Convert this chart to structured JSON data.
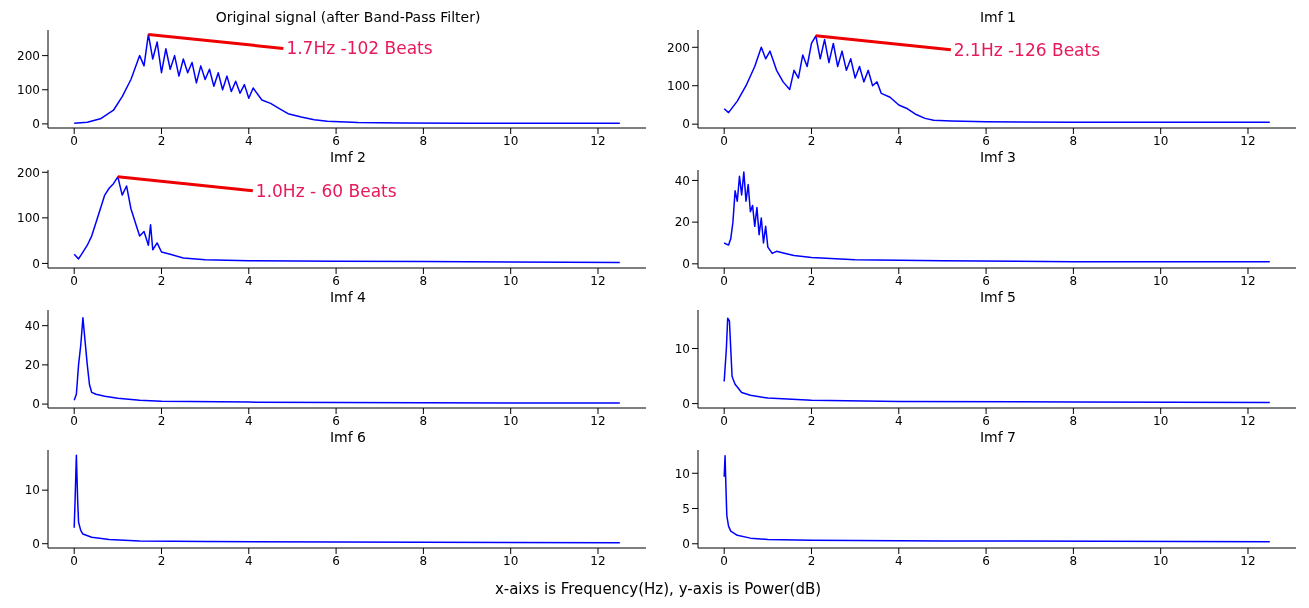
{
  "chart_data": [
    {
      "type": "line",
      "title": "Original signal (after Band-Pass Filter)",
      "color": "#0000ff",
      "xlim": [
        -0.6,
        13.1
      ],
      "ylim": [
        -12,
        275
      ],
      "xticks": [
        0,
        2,
        4,
        6,
        8,
        10,
        12
      ],
      "yticks": [
        0,
        100,
        200
      ],
      "annotations": [
        {
          "text": "1.7Hz -102 Beats",
          "x": 1.7,
          "y": 262
        }
      ],
      "x": [
        0,
        0.3,
        0.6,
        0.9,
        1.1,
        1.3,
        1.5,
        1.6,
        1.7,
        1.8,
        1.9,
        2.0,
        2.1,
        2.2,
        2.3,
        2.4,
        2.5,
        2.6,
        2.7,
        2.8,
        2.9,
        3.0,
        3.1,
        3.2,
        3.3,
        3.4,
        3.5,
        3.6,
        3.7,
        3.8,
        3.9,
        4.0,
        4.1,
        4.3,
        4.5,
        4.7,
        4.9,
        5.2,
        5.5,
        5.8,
        6.5,
        7.5,
        9,
        11,
        12.5
      ],
      "values": [
        2,
        5,
        15,
        40,
        80,
        130,
        200,
        170,
        262,
        190,
        240,
        150,
        220,
        160,
        200,
        140,
        190,
        150,
        180,
        120,
        170,
        130,
        160,
        110,
        150,
        100,
        140,
        95,
        125,
        90,
        115,
        75,
        105,
        70,
        60,
        45,
        30,
        20,
        12,
        8,
        4,
        3,
        2,
        2,
        2
      ]
    },
    {
      "type": "line",
      "title": "Imf 1",
      "color": "#0000ff",
      "xlim": [
        -0.6,
        13.1
      ],
      "ylim": [
        -10,
        245
      ],
      "xticks": [
        0,
        2,
        4,
        6,
        8,
        10,
        12
      ],
      "yticks": [
        0,
        100,
        200
      ],
      "annotations": [
        {
          "text": "2.1Hz -126 Beats",
          "x": 2.1,
          "y": 230
        }
      ],
      "x": [
        0,
        0.1,
        0.3,
        0.5,
        0.7,
        0.85,
        0.95,
        1.05,
        1.2,
        1.35,
        1.5,
        1.6,
        1.7,
        1.8,
        1.9,
        2.0,
        2.1,
        2.2,
        2.3,
        2.4,
        2.5,
        2.6,
        2.7,
        2.8,
        2.9,
        3.0,
        3.1,
        3.2,
        3.3,
        3.4,
        3.5,
        3.6,
        3.8,
        4.0,
        4.2,
        4.4,
        4.6,
        4.8,
        5.2,
        6,
        8,
        10,
        12.5
      ],
      "values": [
        40,
        30,
        60,
        100,
        150,
        200,
        170,
        190,
        140,
        110,
        90,
        140,
        120,
        180,
        150,
        210,
        230,
        170,
        220,
        160,
        210,
        150,
        190,
        140,
        170,
        120,
        150,
        110,
        140,
        100,
        110,
        80,
        70,
        50,
        40,
        25,
        15,
        10,
        8,
        6,
        5,
        5,
        5
      ]
    },
    {
      "type": "line",
      "title": "Imf 2",
      "color": "#0000ff",
      "xlim": [
        -0.6,
        13.1
      ],
      "ylim": [
        -10,
        205
      ],
      "xticks": [
        0,
        2,
        4,
        6,
        8,
        10,
        12
      ],
      "yticks": [
        0,
        100,
        200
      ],
      "annotations": [
        {
          "text": "1.0Hz - 60 Beats",
          "x": 1.0,
          "y": 190
        }
      ],
      "x": [
        0,
        0.1,
        0.2,
        0.3,
        0.4,
        0.5,
        0.6,
        0.7,
        0.8,
        0.9,
        1.0,
        1.1,
        1.2,
        1.3,
        1.4,
        1.5,
        1.6,
        1.7,
        1.75,
        1.8,
        1.9,
        2.0,
        2.2,
        2.5,
        3,
        4,
        6,
        8,
        10,
        12.5
      ],
      "values": [
        20,
        10,
        25,
        40,
        60,
        90,
        120,
        150,
        165,
        175,
        190,
        150,
        170,
        120,
        90,
        60,
        70,
        40,
        85,
        30,
        45,
        25,
        20,
        12,
        8,
        6,
        5,
        4,
        3,
        2
      ]
    },
    {
      "type": "line",
      "title": "Imf 3",
      "color": "#0000ff",
      "xlim": [
        -0.6,
        13.1
      ],
      "ylim": [
        -2,
        45
      ],
      "xticks": [
        0,
        2,
        4,
        6,
        8,
        10,
        12
      ],
      "yticks": [
        0,
        20,
        40
      ],
      "x": [
        0,
        0.1,
        0.15,
        0.2,
        0.25,
        0.3,
        0.35,
        0.4,
        0.45,
        0.5,
        0.55,
        0.6,
        0.65,
        0.7,
        0.75,
        0.8,
        0.85,
        0.9,
        0.95,
        1.0,
        1.1,
        1.2,
        1.4,
        1.6,
        2,
        3,
        5,
        8,
        12.5
      ],
      "values": [
        10,
        9,
        12,
        20,
        35,
        30,
        42,
        33,
        44,
        30,
        38,
        25,
        28,
        18,
        27,
        14,
        22,
        10,
        18,
        8,
        5,
        6,
        5,
        4,
        3,
        2,
        1.5,
        1,
        1
      ]
    },
    {
      "type": "line",
      "title": "Imf 4",
      "color": "#0000ff",
      "xlim": [
        -0.6,
        13.1
      ],
      "ylim": [
        -2,
        48
      ],
      "xticks": [
        0,
        2,
        4,
        6,
        8,
        10,
        12
      ],
      "yticks": [
        0,
        20,
        40
      ],
      "x": [
        0,
        0.05,
        0.1,
        0.15,
        0.2,
        0.25,
        0.3,
        0.35,
        0.4,
        0.5,
        0.7,
        1,
        1.5,
        2,
        4,
        8,
        12.5
      ],
      "values": [
        2,
        5,
        20,
        30,
        44,
        32,
        20,
        10,
        6,
        5,
        4,
        3,
        2,
        1.5,
        1,
        0.7,
        0.5
      ]
    },
    {
      "type": "line",
      "title": "Imf 5",
      "color": "#0000ff",
      "xlim": [
        -0.6,
        13.1
      ],
      "ylim": [
        -0.8,
        17
      ],
      "xticks": [
        0,
        2,
        4,
        6,
        8,
        10,
        12
      ],
      "yticks": [
        0,
        10
      ],
      "x": [
        0,
        0.05,
        0.08,
        0.12,
        0.15,
        0.18,
        0.2,
        0.25,
        0.3,
        0.4,
        0.6,
        1,
        2,
        4,
        8,
        12.5
      ],
      "values": [
        4,
        10,
        15.5,
        15,
        10,
        5,
        4.5,
        3.5,
        3,
        2,
        1.5,
        1,
        0.6,
        0.4,
        0.3,
        0.2
      ]
    },
    {
      "type": "line",
      "title": "Imf 6",
      "color": "#0000ff",
      "xlim": [
        -0.6,
        13.1
      ],
      "ylim": [
        -0.8,
        17.5
      ],
      "xticks": [
        0,
        2,
        4,
        6,
        8,
        10,
        12
      ],
      "yticks": [
        0,
        10
      ],
      "x": [
        0,
        0.02,
        0.05,
        0.08,
        0.1,
        0.15,
        0.2,
        0.4,
        0.8,
        1.5,
        3,
        6,
        12.5
      ],
      "values": [
        3,
        8,
        16.5,
        8,
        4,
        2.5,
        1.8,
        1.2,
        0.8,
        0.5,
        0.4,
        0.3,
        0.2
      ]
    },
    {
      "type": "line",
      "title": "Imf 7",
      "color": "#0000ff",
      "xlim": [
        -0.6,
        13.1
      ],
      "ylim": [
        -0.6,
        13.3
      ],
      "xticks": [
        0,
        2,
        4,
        6,
        8,
        10,
        12
      ],
      "yticks": [
        0,
        5,
        10
      ],
      "annotations": [
        "x-aixs is Frequency(Hz), y-axis is Power(dB)"
      ],
      "x": [
        0,
        0.02,
        0.04,
        0.06,
        0.1,
        0.15,
        0.3,
        0.6,
        1,
        2,
        5,
        12.5
      ],
      "values": [
        9.5,
        12.5,
        8,
        4,
        2.5,
        1.8,
        1.2,
        0.8,
        0.6,
        0.5,
        0.4,
        0.3
      ]
    }
  ]
}
